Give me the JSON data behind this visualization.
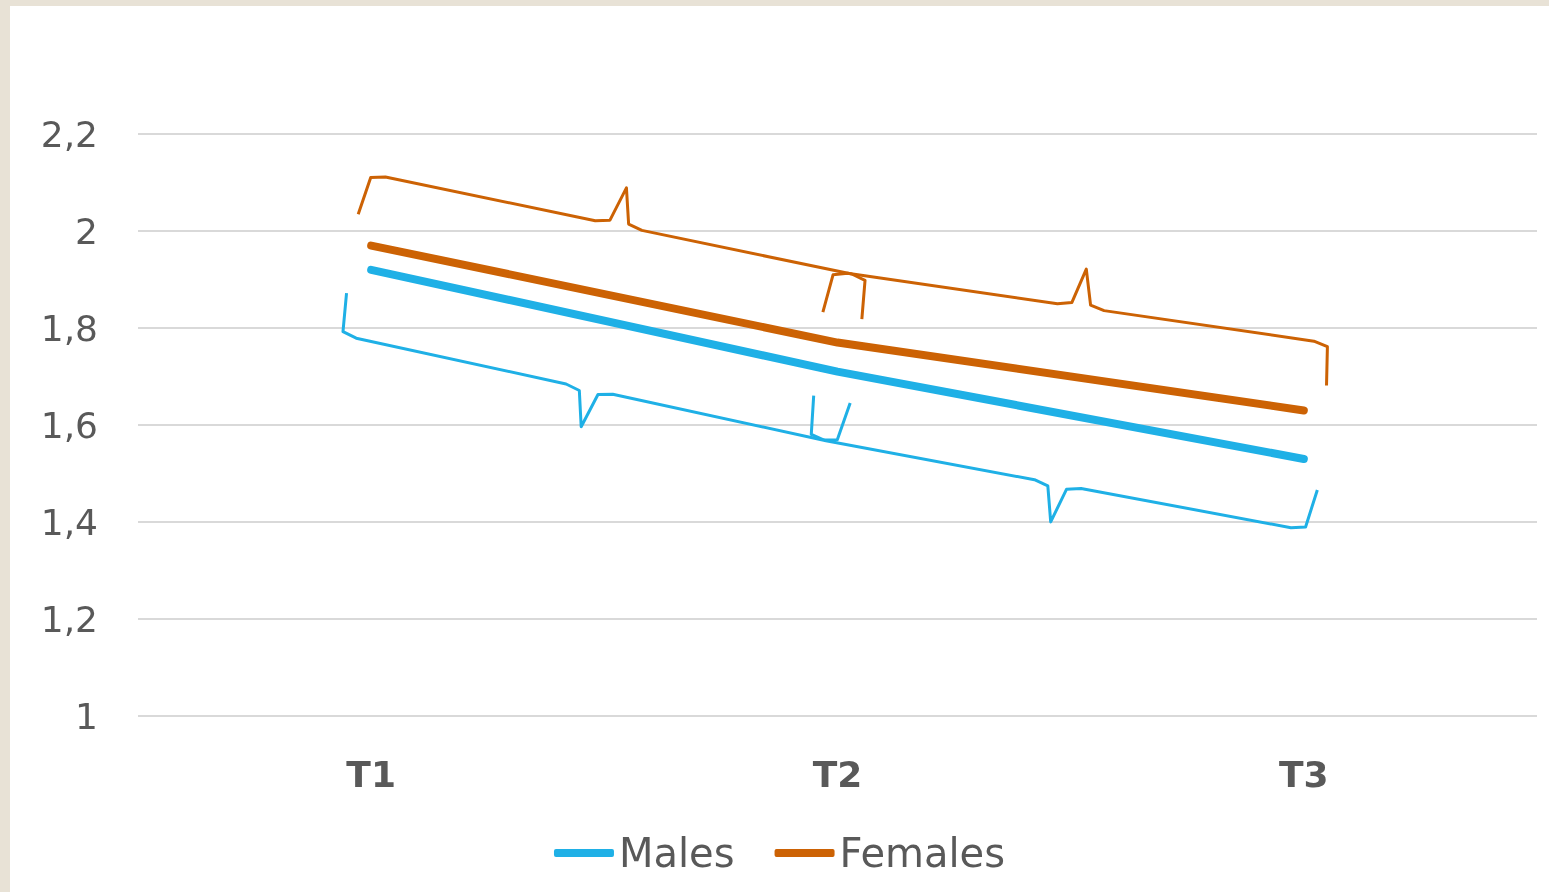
{
  "chart_data": {
    "type": "line",
    "categories": [
      "T1",
      "T2",
      "T3"
    ],
    "series": [
      {
        "name": "Males",
        "color": "#1fb0e6",
        "values": [
          1.92,
          1.71,
          1.53
        ]
      },
      {
        "name": "Females",
        "color": "#cc6204",
        "values": [
          1.97,
          1.77,
          1.63
        ]
      }
    ],
    "ylim": [
      1,
      2.2
    ],
    "yticks": [
      1,
      {
        "value": 1.2,
        "label": "1,2"
      },
      {
        "value": 1.4,
        "label": "1,4"
      },
      {
        "value": 1.6,
        "label": "1,6"
      },
      {
        "value": 1.8,
        "label": "1,8"
      },
      2,
      {
        "value": 2.2,
        "label": "2,2"
      }
    ],
    "grid": "y",
    "legend": "bottom",
    "marker": "none",
    "line_style": "solid"
  }
}
